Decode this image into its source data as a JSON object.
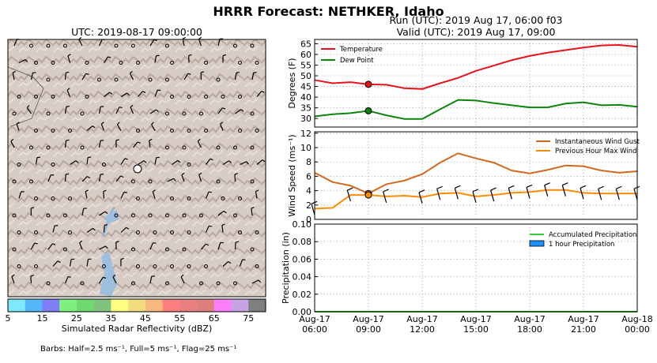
{
  "title": "HRRR Forecast: NETHKER, Idaho",
  "map": {
    "utc_label": "UTC: 2019-08-17 09:00:00",
    "colorbar": {
      "label": "Simulated Radar Reflectivity (dBZ)",
      "ticks": [
        "5",
        "15",
        "25",
        "35",
        "45",
        "55",
        "65",
        "75"
      ],
      "colors": [
        "#7fe9fa",
        "#55b6f9",
        "#7f7ff8",
        "#7ff07f",
        "#6fd86f",
        "#7fc37f",
        "#fdfd7f",
        "#f2dc7f",
        "#f7b77f",
        "#fb7f7f",
        "#ea7f7f",
        "#de7f7f",
        "#fb7ffb",
        "#c7a3e5",
        "#7f7f7f"
      ]
    },
    "barbs_note": "Barbs: Half=2.5 ms⁻¹, Full=5 ms⁻¹, Flag=25 ms⁻¹"
  },
  "run_label": "Run (UTC): 2019 Aug 17, 06:00 f03",
  "valid_label": "Valid (UTC): 2019 Aug 17, 09:00",
  "x_ticks": [
    {
      "line1": "Aug-17",
      "line2": "06:00"
    },
    {
      "line1": "Aug-17",
      "line2": "09:00"
    },
    {
      "line1": "Aug-17",
      "line2": "12:00"
    },
    {
      "line1": "Aug-17",
      "line2": "15:00"
    },
    {
      "line1": "Aug-17",
      "line2": "18:00"
    },
    {
      "line1": "Aug-17",
      "line2": "21:00"
    },
    {
      "line1": "Aug-18",
      "line2": "00:00"
    }
  ],
  "chart_data": [
    {
      "type": "line",
      "ylabel": "Degrees (F)",
      "ylim": [
        26,
        67
      ],
      "yticks": [
        30,
        35,
        40,
        45,
        50,
        55,
        60,
        65
      ],
      "xlim": [
        0,
        18
      ],
      "grid": true,
      "legend": "top-left",
      "marker_x": 3,
      "series": [
        {
          "name": "Temperature",
          "color": "#e8121b",
          "x": [
            0,
            1,
            2,
            3,
            4,
            5,
            6,
            7,
            8,
            9,
            10,
            11,
            12,
            13,
            14,
            15,
            16,
            17,
            18
          ],
          "y": [
            48,
            46.5,
            47,
            46,
            45.8,
            44.2,
            43.8,
            46.5,
            49,
            52.3,
            54.8,
            57.3,
            59.3,
            60.8,
            62,
            63.2,
            64.2,
            64.4,
            63.6
          ]
        },
        {
          "name": "Dew Point",
          "color": "#0c850c",
          "x": [
            0,
            1,
            2,
            3,
            4,
            5,
            6,
            7,
            8,
            9,
            10,
            11,
            12,
            13,
            14,
            15,
            16,
            17,
            18
          ],
          "y": [
            31,
            32,
            32.5,
            33.6,
            31.5,
            29.8,
            29.8,
            34.3,
            38.7,
            38.4,
            37.2,
            36.2,
            35.2,
            35.2,
            37,
            37.6,
            36.2,
            36.4,
            35.5
          ]
        }
      ]
    },
    {
      "type": "line",
      "ylabel": "Wind Speed (ms⁻¹)",
      "ylim": [
        0,
        12.2
      ],
      "yticks": [
        0,
        2,
        4,
        6,
        8,
        10,
        12
      ],
      "xlim": [
        0,
        18
      ],
      "grid": true,
      "legend": "top-right",
      "marker_x": 3,
      "series": [
        {
          "name": "Instantaneous Wind Gust",
          "color": "#d2691e",
          "x": [
            0,
            1,
            2,
            3,
            4,
            5,
            6,
            7,
            8,
            9,
            10,
            11,
            12,
            13,
            14,
            15,
            16,
            17,
            18
          ],
          "y": [
            6.5,
            5.2,
            4.7,
            3.6,
            4.9,
            5.4,
            6.3,
            7.9,
            9.2,
            8.5,
            7.9,
            6.8,
            6.4,
            6.9,
            7.5,
            7.4,
            6.8,
            6.5,
            6.7
          ]
        },
        {
          "name": "Previous Hour Max Wind",
          "color": "#ff8c00",
          "x": [
            0,
            1,
            2,
            3,
            4,
            5,
            6,
            7,
            8,
            9,
            10,
            11,
            12,
            13,
            14,
            15,
            16,
            17,
            18
          ],
          "y": [
            1.5,
            1.6,
            3.4,
            3.4,
            3.2,
            3.3,
            3.1,
            3.6,
            3.7,
            3.2,
            3.4,
            3.7,
            3.8,
            4.1,
            4.1,
            3.7,
            3.6,
            3.6,
            3.6
          ]
        }
      ]
    },
    {
      "type": "line",
      "ylabel": "Precipitation (in)",
      "ylim": [
        0,
        0.1
      ],
      "yticks": [
        "0.00",
        "0.02",
        "0.04",
        "0.06",
        "0.08",
        "0.10"
      ],
      "xlim": [
        0,
        18
      ],
      "grid": true,
      "legend": "right",
      "marker_x": 3,
      "series": [
        {
          "name": "Accumulated Precipitation",
          "color": "#32cd32",
          "x": [
            0,
            18
          ],
          "y": [
            0,
            0
          ]
        },
        {
          "name": "1 hour Precipitation",
          "color": "#1e90ff",
          "x": [],
          "y": []
        }
      ]
    }
  ]
}
